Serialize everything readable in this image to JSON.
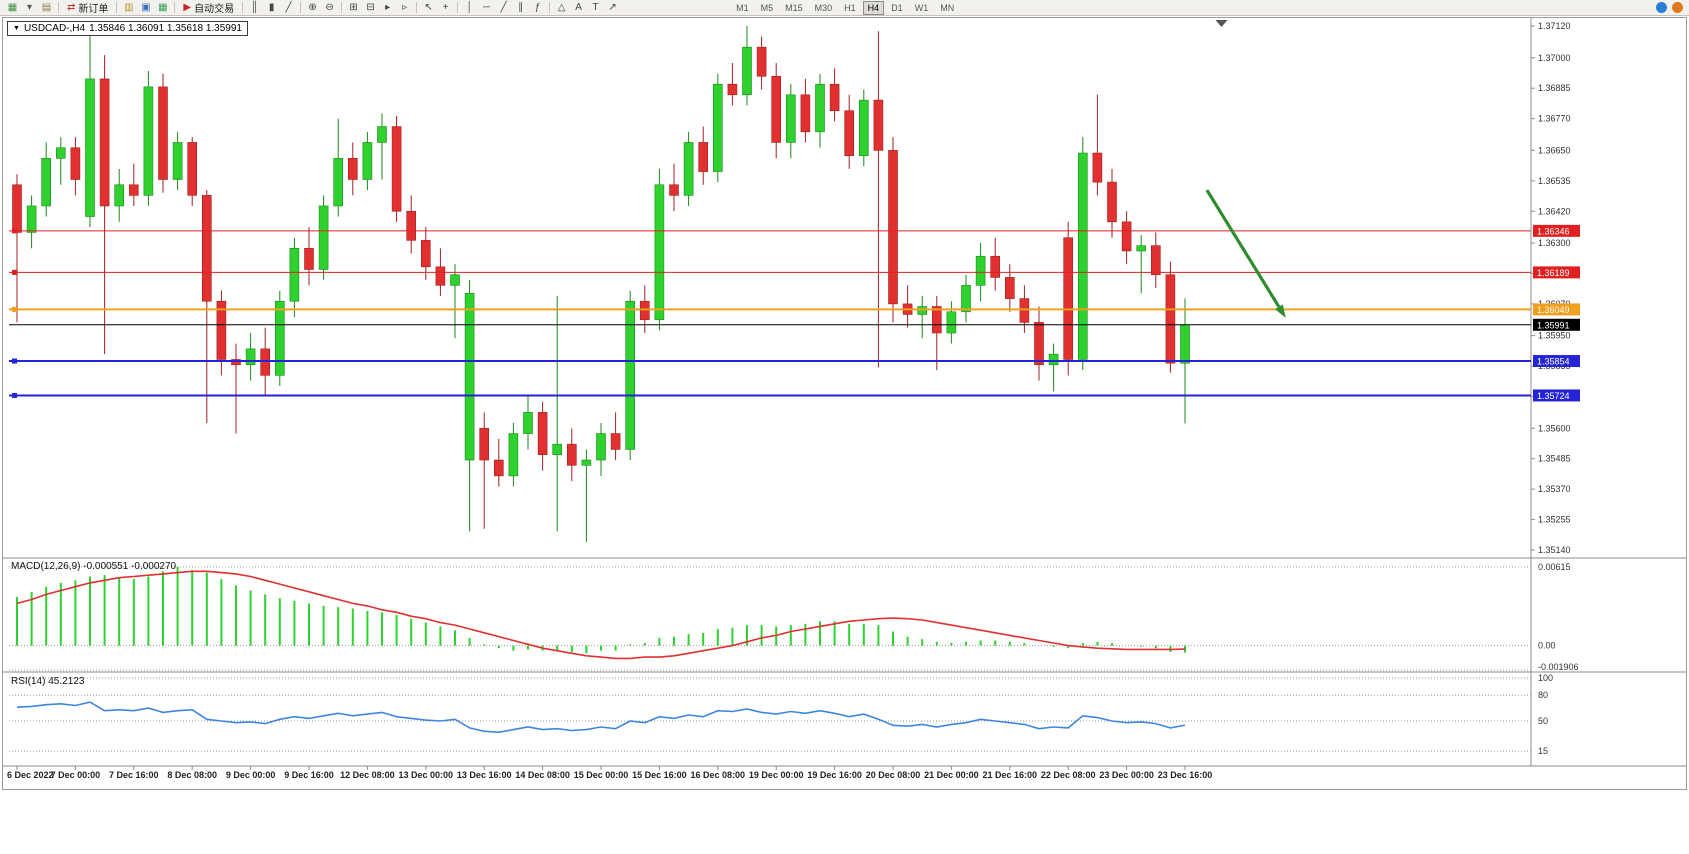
{
  "toolbar": {
    "groups": [
      {
        "items": [
          {
            "n": "new-chart-icon",
            "g": "▦",
            "c": "#3f8f3f"
          },
          {
            "n": "chart-dropdown-icon",
            "g": "▾",
            "c": "#555555"
          },
          {
            "n": "profiles-icon",
            "g": "▤",
            "c": "#8a7a4a"
          }
        ]
      },
      {
        "items": [
          {
            "n": "new-order-button",
            "g": "⇄",
            "c": "#c03030",
            "label": "新订单"
          }
        ]
      },
      {
        "items": [
          {
            "n": "market-watch-icon",
            "g": "▥",
            "c": "#b8932f"
          },
          {
            "n": "data-window-icon",
            "g": "▣",
            "c": "#3a6fc0"
          },
          {
            "n": "strategy-tester-icon",
            "g": "▦",
            "c": "#3aa05a"
          }
        ]
      },
      {
        "items": [
          {
            "n": "autotrade-button",
            "g": "▶",
            "c": "#cc2222",
            "label": "自动交易"
          }
        ]
      },
      {
        "items": [
          {
            "n": "bar-chart-icon",
            "g": "║",
            "c": "#444444"
          },
          {
            "n": "candlestick-icon",
            "g": "▮",
            "c": "#444444"
          },
          {
            "n": "line-chart-icon",
            "g": "╱",
            "c": "#444444"
          }
        ]
      },
      {
        "items": [
          {
            "n": "zoom-in-icon",
            "g": "⊕",
            "c": "#444444"
          },
          {
            "n": "zoom-out-icon",
            "g": "⊖",
            "c": "#444444"
          }
        ]
      },
      {
        "items": [
          {
            "n": "tile-windows-icon",
            "g": "⊞",
            "c": "#444444"
          },
          {
            "n": "cascade-windows-icon",
            "g": "⊟",
            "c": "#444444"
          },
          {
            "n": "auto-scroll-icon",
            "g": "▸",
            "c": "#444444"
          },
          {
            "n": "chart-shift-icon",
            "g": "▹",
            "c": "#444444"
          }
        ]
      },
      {
        "items": [
          {
            "n": "cursor-icon",
            "g": "↖",
            "c": "#444444"
          },
          {
            "n": "crosshair-icon",
            "g": "+",
            "c": "#444444"
          }
        ]
      },
      {
        "items": [
          {
            "n": "vertical-line-icon",
            "g": "│",
            "c": "#444444"
          },
          {
            "n": "horizontal-line-icon",
            "g": "─",
            "c": "#444444"
          },
          {
            "n": "trendline-icon",
            "g": "╱",
            "c": "#444444"
          },
          {
            "n": "channel-icon",
            "g": "∥",
            "c": "#444444"
          },
          {
            "n": "fibonacci-icon",
            "g": "ƒ",
            "c": "#444444"
          }
        ]
      },
      {
        "items": [
          {
            "n": "shapes-icon",
            "g": "△",
            "c": "#444444"
          },
          {
            "n": "text-icon",
            "g": "A",
            "c": "#444444"
          },
          {
            "n": "label-icon",
            "g": "T",
            "c": "#444444"
          },
          {
            "n": "arrow-tool-icon",
            "g": "↗",
            "c": "#444444"
          }
        ]
      }
    ],
    "timeframes": [
      "M1",
      "M5",
      "M15",
      "M30",
      "H1",
      "H4",
      "D1",
      "W1",
      "MN"
    ],
    "active_timeframe": "H4",
    "right_icons": [
      {
        "n": "community-icon",
        "c": "#2a7fd4"
      },
      {
        "n": "mql5-icon",
        "c": "#e07820"
      }
    ]
  },
  "chart": {
    "title": "USDCAD-,H4",
    "ohlc_text": "1.35846 1.36091 1.35618 1.35991"
  },
  "chart_data": {
    "type": "candlestick",
    "symbol": "USDCAD-",
    "timeframe": "H4",
    "current": {
      "open": 1.35846,
      "high": 1.36091,
      "low": 1.35618,
      "close": 1.35991
    },
    "colors": {
      "bull": "#2fd12f",
      "bull_edge": "#1a8a1a",
      "bear": "#e03030",
      "bear_edge": "#a02020",
      "axis_text": "#333333",
      "grid": "#9a9a9a"
    },
    "price_axis": {
      "min": 1.3514,
      "max": 1.3712,
      "ticks": [
        1.3712,
        1.37,
        1.36885,
        1.3677,
        1.3665,
        1.36535,
        1.3642,
        1.363,
        1.36185,
        1.3607,
        1.3595,
        1.35835,
        1.3572,
        1.356,
        1.35485,
        1.3537,
        1.35255,
        1.3514
      ]
    },
    "time_labels": [
      "6 Dec 2022",
      "7 Dec 00:00",
      "7 Dec 16:00",
      "8 Dec 08:00",
      "9 Dec 00:00",
      "9 Dec 16:00",
      "12 Dec 08:00",
      "13 Dec 00:00",
      "13 Dec 16:00",
      "14 Dec 08:00",
      "15 Dec 00:00",
      "15 Dec 16:00",
      "16 Dec 08:00",
      "19 Dec 00:00",
      "19 Dec 16:00",
      "20 Dec 08:00",
      "21 Dec 00:00",
      "21 Dec 16:00",
      "22 Dec 08:00",
      "23 Dec 00:00",
      "23 Dec 16:00"
    ],
    "candles": [
      [
        1.3652,
        1.3656,
        1.36,
        1.3634
      ],
      [
        1.3634,
        1.3648,
        1.3628,
        1.3644
      ],
      [
        1.3644,
        1.3668,
        1.364,
        1.3662
      ],
      [
        1.3662,
        1.367,
        1.3652,
        1.3666
      ],
      [
        1.3666,
        1.367,
        1.3648,
        1.3654
      ],
      [
        1.364,
        1.3709,
        1.3636,
        1.3692
      ],
      [
        1.3692,
        1.3701,
        1.3588,
        1.3644
      ],
      [
        1.3644,
        1.3658,
        1.3638,
        1.3652
      ],
      [
        1.3652,
        1.366,
        1.3644,
        1.3648
      ],
      [
        1.3648,
        1.3695,
        1.3644,
        1.3689
      ],
      [
        1.3689,
        1.3694,
        1.3649,
        1.3654
      ],
      [
        1.3654,
        1.3672,
        1.365,
        1.3668
      ],
      [
        1.3668,
        1.367,
        1.3644,
        1.3648
      ],
      [
        1.3648,
        1.365,
        1.3562,
        1.3608
      ],
      [
        1.3608,
        1.3612,
        1.358,
        1.3586
      ],
      [
        1.3586,
        1.3592,
        1.3558,
        1.3584
      ],
      [
        1.3584,
        1.3596,
        1.3578,
        1.359
      ],
      [
        1.359,
        1.3598,
        1.3572,
        1.358
      ],
      [
        1.358,
        1.3612,
        1.3576,
        1.3608
      ],
      [
        1.3608,
        1.3632,
        1.3602,
        1.3628
      ],
      [
        1.3628,
        1.3636,
        1.3614,
        1.362
      ],
      [
        1.362,
        1.3648,
        1.3616,
        1.3644
      ],
      [
        1.3644,
        1.3677,
        1.364,
        1.3662
      ],
      [
        1.3662,
        1.3668,
        1.3648,
        1.3654
      ],
      [
        1.3654,
        1.3672,
        1.365,
        1.3668
      ],
      [
        1.3668,
        1.3679,
        1.3654,
        1.3674
      ],
      [
        1.3674,
        1.3678,
        1.3638,
        1.3642
      ],
      [
        1.3642,
        1.3648,
        1.3626,
        1.3631
      ],
      [
        1.3631,
        1.3636,
        1.3616,
        1.3621
      ],
      [
        1.3621,
        1.3628,
        1.361,
        1.3614
      ],
      [
        1.3614,
        1.3622,
        1.3594,
        1.3618
      ],
      [
        1.3548,
        1.3616,
        1.3521,
        1.3611
      ],
      [
        1.356,
        1.3566,
        1.3522,
        1.3548
      ],
      [
        1.3548,
        1.3556,
        1.3538,
        1.3542
      ],
      [
        1.3542,
        1.3562,
        1.3538,
        1.3558
      ],
      [
        1.3558,
        1.3572,
        1.3552,
        1.3566
      ],
      [
        1.3566,
        1.357,
        1.3544,
        1.355
      ],
      [
        1.355,
        1.361,
        1.3521,
        1.3554
      ],
      [
        1.3554,
        1.356,
        1.354,
        1.3546
      ],
      [
        1.3546,
        1.3552,
        1.3517,
        1.3548
      ],
      [
        1.3548,
        1.3562,
        1.3542,
        1.3558
      ],
      [
        1.3558,
        1.3566,
        1.3548,
        1.3552
      ],
      [
        1.3552,
        1.3612,
        1.3548,
        1.3608
      ],
      [
        1.3608,
        1.3614,
        1.3596,
        1.3601
      ],
      [
        1.3601,
        1.3658,
        1.3597,
        1.3652
      ],
      [
        1.3652,
        1.366,
        1.3642,
        1.3648
      ],
      [
        1.3648,
        1.3672,
        1.3644,
        1.3668
      ],
      [
        1.3668,
        1.3674,
        1.3652,
        1.3657
      ],
      [
        1.3657,
        1.3694,
        1.3653,
        1.369
      ],
      [
        1.369,
        1.3698,
        1.3682,
        1.3686
      ],
      [
        1.3686,
        1.3712,
        1.3682,
        1.3704
      ],
      [
        1.3704,
        1.3708,
        1.3688,
        1.3693
      ],
      [
        1.3693,
        1.3698,
        1.3662,
        1.3668
      ],
      [
        1.3668,
        1.369,
        1.3662,
        1.3686
      ],
      [
        1.3686,
        1.3692,
        1.3668,
        1.3672
      ],
      [
        1.3672,
        1.3694,
        1.3666,
        1.369
      ],
      [
        1.369,
        1.3696,
        1.3676,
        1.368
      ],
      [
        1.368,
        1.3686,
        1.3658,
        1.3663
      ],
      [
        1.3663,
        1.3688,
        1.3659,
        1.3684
      ],
      [
        1.3684,
        1.371,
        1.3583,
        1.3665
      ],
      [
        1.3665,
        1.367,
        1.36,
        1.3607
      ],
      [
        1.3607,
        1.3614,
        1.3598,
        1.3603
      ],
      [
        1.3603,
        1.361,
        1.3594,
        1.3606
      ],
      [
        1.3606,
        1.361,
        1.3582,
        1.3596
      ],
      [
        1.3596,
        1.3608,
        1.3592,
        1.3604
      ],
      [
        1.3604,
        1.3618,
        1.36,
        1.3614
      ],
      [
        1.3614,
        1.363,
        1.3608,
        1.3625
      ],
      [
        1.3625,
        1.3632,
        1.3612,
        1.3617
      ],
      [
        1.3617,
        1.3622,
        1.3604,
        1.3609
      ],
      [
        1.3609,
        1.3614,
        1.3596,
        1.36
      ],
      [
        1.36,
        1.3606,
        1.3578,
        1.3584
      ],
      [
        1.3584,
        1.3592,
        1.3574,
        1.3588
      ],
      [
        1.3632,
        1.3638,
        1.358,
        1.3586
      ],
      [
        1.3586,
        1.367,
        1.3582,
        1.3664
      ],
      [
        1.3664,
        1.3686,
        1.3648,
        1.3653
      ],
      [
        1.3653,
        1.3658,
        1.3632,
        1.3638
      ],
      [
        1.3638,
        1.3642,
        1.3622,
        1.3627
      ],
      [
        1.3627,
        1.3633,
        1.3611,
        1.3629
      ],
      [
        1.3629,
        1.3634,
        1.3613,
        1.3618
      ],
      [
        1.3618,
        1.3623,
        1.3581,
        1.35846
      ],
      [
        1.35846,
        1.36091,
        1.35618,
        1.35991
      ]
    ],
    "hlines": [
      {
        "price": 1.36346,
        "color": "#e02020",
        "badge": "1.36346",
        "width": 1
      },
      {
        "price": 1.36189,
        "color": "#e02020",
        "badge": "1.36189",
        "width": 1
      },
      {
        "price": 1.36049,
        "color": "#f0a01e",
        "badge": "1.36049",
        "width": 2
      },
      {
        "price": 1.35854,
        "color": "#2424d6",
        "badge": "1.35854",
        "width": 2
      },
      {
        "price": 1.35724,
        "color": "#2424d6",
        "badge": "1.35724",
        "width": 2
      }
    ],
    "price_line": {
      "price": 1.35991,
      "badge": "1.35991",
      "color": "#000000"
    },
    "arrow": {
      "from_index": 81.5,
      "from_price": 1.365,
      "to_index": 86.9,
      "to_price": 1.36017,
      "color": "#2e8b2e"
    },
    "shift_marker_index": 82.5,
    "macd": {
      "header": "MACD(12,26,9) -0.000551 -0.000270",
      "main_value": -0.000551,
      "signal_value": -0.00027,
      "axis": [
        {
          "value": 0.00615,
          "label": "0.00615"
        },
        {
          "value": 0,
          "label": "0.00"
        },
        {
          "value": -0.001906,
          "label": "-0.001906"
        }
      ],
      "scale_max": 0.00653,
      "scale_min": -0.001906,
      "colors": {
        "histogram": "#2fd12f",
        "signal": "#e03030"
      },
      "histogram": [
        0.0038,
        0.0042,
        0.0046,
        0.0049,
        0.0051,
        0.0054,
        0.0055,
        0.0053,
        0.0052,
        0.0054,
        0.0058,
        0.00615,
        0.0059,
        0.0057,
        0.0052,
        0.0047,
        0.0043,
        0.004,
        0.0037,
        0.0035,
        0.0033,
        0.0031,
        0.003,
        0.0029,
        0.0027,
        0.0026,
        0.0024,
        0.0021,
        0.0018,
        0.0015,
        0.0012,
        0.0006,
        0.0001,
        -0.0002,
        -0.0004,
        -0.0003,
        -0.0004,
        -0.0004,
        -0.0005,
        -0.0006,
        -0.0004,
        -0.0004,
        0.0001,
        0.0002,
        0.0006,
        0.0007,
        0.0009,
        0.001,
        0.0013,
        0.0014,
        0.0016,
        0.0016,
        0.0015,
        0.0016,
        0.0017,
        0.0019,
        0.0019,
        0.0017,
        0.0017,
        0.0016,
        0.0011,
        0.0007,
        0.0005,
        0.0003,
        0.0002,
        0.0003,
        0.0004,
        0.0004,
        0.0003,
        0.0002,
        0.0,
        -0.0001,
        -0.0002,
        0.0002,
        0.0003,
        0.0002,
        0.0,
        -0.0001,
        -0.0002,
        -0.0005,
        -0.000551
      ],
      "signal": [
        0.0033,
        0.0036,
        0.004,
        0.0043,
        0.0046,
        0.0049,
        0.0051,
        0.0053,
        0.0054,
        0.0055,
        0.0056,
        0.0057,
        0.0058,
        0.0058,
        0.0057,
        0.0056,
        0.0054,
        0.0051,
        0.0048,
        0.0045,
        0.0042,
        0.0039,
        0.0036,
        0.0033,
        0.0031,
        0.0028,
        0.0026,
        0.0023,
        0.0021,
        0.0018,
        0.0016,
        0.0013,
        0.001,
        0.0007,
        0.0004,
        0.0001,
        -0.0002,
        -0.0004,
        -0.0006,
        -0.0008,
        -0.0009,
        -0.001,
        -0.001,
        -0.0009,
        -0.0009,
        -0.0008,
        -0.0006,
        -0.0004,
        -0.0002,
        0.0,
        0.0003,
        0.0006,
        0.0008,
        0.0011,
        0.0013,
        0.0015,
        0.0017,
        0.0019,
        0.002,
        0.0021,
        0.00215,
        0.0021,
        0.002,
        0.0018,
        0.0016,
        0.0014,
        0.0012,
        0.001,
        0.0008,
        0.0006,
        0.0004,
        0.0002,
        0.0,
        -0.0001,
        -0.0002,
        -0.00025,
        -0.0003,
        -0.0003,
        -0.0003,
        -0.0003,
        -0.00027
      ]
    },
    "rsi": {
      "header": "RSI(14) 45.2123",
      "value": 45.2123,
      "color": "#3f86e0",
      "levels": [
        {
          "value": 100,
          "label": "100"
        },
        {
          "value": 80,
          "label": "80"
        },
        {
          "value": 50,
          "label": "50"
        },
        {
          "value": 15,
          "label": "15"
        }
      ],
      "values": [
        66,
        67,
        69,
        70,
        68,
        72,
        62,
        63,
        62,
        65,
        60,
        62,
        63,
        52,
        50,
        48,
        49,
        47,
        52,
        55,
        53,
        56,
        59,
        56,
        58,
        60,
        55,
        53,
        51,
        50,
        52,
        42,
        38,
        37,
        40,
        43,
        40,
        41,
        39,
        40,
        43,
        41,
        50,
        48,
        55,
        53,
        57,
        55,
        62,
        61,
        64,
        60,
        58,
        61,
        59,
        62,
        59,
        55,
        58,
        52,
        45,
        44,
        46,
        43,
        46,
        48,
        52,
        50,
        48,
        46,
        41,
        43,
        42,
        56,
        54,
        50,
        48,
        49,
        47,
        42,
        45.2123
      ]
    }
  }
}
